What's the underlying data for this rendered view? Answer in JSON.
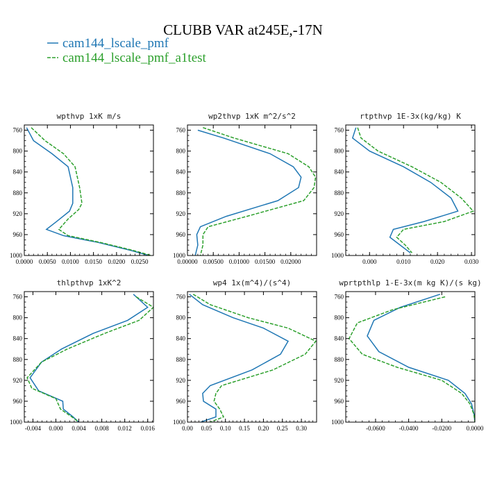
{
  "figure": {
    "title": "CLUBB VAR at245E,-17N",
    "legend": [
      {
        "label": "cam144_lscale_pmf",
        "color": "#1f77b4",
        "dash": false
      },
      {
        "label": "cam144_lscale_pmf_a1test",
        "color": "#2ca02c",
        "dash": true
      }
    ]
  },
  "chart_data": [
    {
      "type": "line",
      "title": "wpthvp  1xK m/s",
      "y_ticks": [
        760,
        800,
        840,
        880,
        920,
        960,
        1000
      ],
      "ylim": [
        1000,
        750
      ],
      "xlim": [
        0.0,
        0.028
      ],
      "x_ticks": [
        0.0,
        0.005,
        0.01,
        0.015,
        0.02,
        0.025
      ],
      "x_tick_labels": [
        "0.0000",
        "0.0050",
        "0.0100",
        "0.0150",
        "0.0200",
        "0.0250"
      ],
      "series": [
        {
          "color": "#1f77b4",
          "dash": false,
          "y": [
            755,
            780,
            805,
            830,
            870,
            900,
            915,
            935,
            950,
            962,
            975,
            990,
            1000
          ],
          "x": [
            0.0005,
            0.002,
            0.006,
            0.0095,
            0.0105,
            0.0105,
            0.0098,
            0.007,
            0.0048,
            0.0085,
            0.016,
            0.023,
            0.027
          ]
        },
        {
          "color": "#2ca02c",
          "dash": true,
          "y": [
            755,
            780,
            805,
            830,
            870,
            900,
            912,
            930,
            950,
            962,
            975,
            990,
            1000
          ],
          "x": [
            0.0015,
            0.0045,
            0.0085,
            0.011,
            0.012,
            0.0125,
            0.0118,
            0.0095,
            0.0075,
            0.0095,
            0.0165,
            0.0235,
            0.0275
          ]
        }
      ]
    },
    {
      "type": "line",
      "title": "wp2thvp  1xK m^2/s^2",
      "y_ticks": [
        760,
        800,
        840,
        880,
        920,
        960,
        1000
      ],
      "ylim": [
        1000,
        750
      ],
      "xlim": [
        0.0,
        0.025
      ],
      "x_ticks": [
        0.0,
        0.005,
        0.01,
        0.015,
        0.02
      ],
      "x_tick_labels": [
        "0.00000",
        "0.00500",
        "0.01000",
        "0.01500",
        "0.02000"
      ],
      "series": [
        {
          "color": "#1f77b4",
          "dash": false,
          "y": [
            760,
            775,
            805,
            830,
            850,
            870,
            895,
            925,
            945,
            960,
            980,
            1000
          ],
          "x": [
            0.002,
            0.007,
            0.016,
            0.0205,
            0.022,
            0.0215,
            0.0175,
            0.0075,
            0.0025,
            0.0018,
            0.002,
            0.0015
          ]
        },
        {
          "color": "#2ca02c",
          "dash": true,
          "y": [
            755,
            775,
            805,
            830,
            850,
            870,
            895,
            925,
            945,
            960,
            980,
            1000
          ],
          "x": [
            0.003,
            0.009,
            0.0195,
            0.0235,
            0.0248,
            0.0245,
            0.0225,
            0.0115,
            0.004,
            0.003,
            0.003,
            0.0025
          ]
        }
      ]
    },
    {
      "type": "line",
      "title": "rtpthvp  1E-3x(kg/kg) K",
      "y_ticks": [
        760,
        800,
        840,
        880,
        920,
        960,
        1000
      ],
      "ylim": [
        1000,
        750
      ],
      "xlim": [
        -0.007,
        0.031
      ],
      "x_ticks": [
        0.0,
        0.01,
        0.02,
        0.03
      ],
      "x_tick_labels": [
        "0.000",
        "0.010",
        "0.020",
        "0.030"
      ],
      "series": [
        {
          "color": "#1f77b4",
          "dash": false,
          "y": [
            755,
            775,
            800,
            830,
            860,
            890,
            915,
            935,
            950,
            965,
            980,
            995
          ],
          "x": [
            -0.004,
            -0.005,
            0.0,
            0.01,
            0.018,
            0.024,
            0.026,
            0.016,
            0.007,
            0.006,
            0.009,
            0.012
          ]
        },
        {
          "color": "#2ca02c",
          "dash": true,
          "y": [
            755,
            775,
            800,
            830,
            860,
            890,
            915,
            935,
            950,
            965,
            980,
            995
          ],
          "x": [
            -0.0035,
            -0.0025,
            0.0025,
            0.0125,
            0.021,
            0.027,
            0.0305,
            0.022,
            0.01,
            0.008,
            0.0105,
            0.0125
          ]
        }
      ]
    },
    {
      "type": "line",
      "title": "thlpthvp  1xK^2",
      "y_ticks": [
        760,
        800,
        840,
        880,
        920,
        960,
        1000
      ],
      "ylim": [
        1000,
        750
      ],
      "xlim": [
        -0.0055,
        0.017
      ],
      "x_ticks": [
        -0.004,
        0.0,
        0.004,
        0.008,
        0.012,
        0.016
      ],
      "x_tick_labels": [
        "-0.004",
        "0.000",
        "0.004",
        "0.008",
        "0.012",
        "0.016"
      ],
      "series": [
        {
          "color": "#1f77b4",
          "dash": false,
          "y": [
            755,
            780,
            805,
            830,
            860,
            885,
            915,
            940,
            960,
            975,
            990,
            1000
          ],
          "x": [
            0.0135,
            0.016,
            0.0125,
            0.0065,
            0.001,
            -0.0025,
            -0.0045,
            -0.003,
            0.0012,
            0.0013,
            0.003,
            0.004
          ]
        },
        {
          "color": "#2ca02c",
          "dash": true,
          "y": [
            760,
            780,
            805,
            830,
            860,
            885,
            915,
            935,
            955,
            975,
            990,
            1000
          ],
          "x": [
            0.014,
            0.017,
            0.0145,
            0.0085,
            0.002,
            -0.0025,
            -0.005,
            -0.0042,
            0.0,
            0.0008,
            0.0028,
            0.004
          ]
        }
      ]
    },
    {
      "type": "line",
      "title": "wp4  1x(m^4)/(s^4)",
      "y_ticks": [
        760,
        800,
        840,
        880,
        920,
        960,
        1000
      ],
      "ylim": [
        1000,
        750
      ],
      "xlim": [
        0.0,
        0.34
      ],
      "x_ticks": [
        0.0,
        0.05,
        0.1,
        0.15,
        0.2,
        0.25,
        0.3
      ],
      "x_tick_labels": [
        "0.00",
        "0.05",
        "0.10",
        "0.15",
        "0.20",
        "0.25",
        "0.30"
      ],
      "series": [
        {
          "color": "#1f77b4",
          "dash": false,
          "y": [
            755,
            775,
            800,
            820,
            845,
            870,
            900,
            930,
            945,
            960,
            975,
            990,
            1000
          ],
          "x": [
            0.005,
            0.04,
            0.12,
            0.2,
            0.265,
            0.245,
            0.17,
            0.06,
            0.04,
            0.042,
            0.075,
            0.075,
            0.035
          ]
        },
        {
          "color": "#2ca02c",
          "dash": true,
          "y": [
            755,
            775,
            800,
            820,
            845,
            870,
            900,
            930,
            945,
            960,
            975,
            990,
            1000
          ],
          "x": [
            0.015,
            0.06,
            0.16,
            0.265,
            0.338,
            0.31,
            0.225,
            0.09,
            0.075,
            0.07,
            0.085,
            0.095,
            0.06
          ]
        }
      ]
    },
    {
      "type": "line",
      "title": "wprtpthlp  1-E-3x(m kg K)/(s kg)",
      "y_ticks": [
        760,
        800,
        840,
        880,
        920,
        960,
        1000
      ],
      "ylim": [
        1000,
        750
      ],
      "xlim": [
        -0.078,
        0.0
      ],
      "x_ticks": [
        -0.06,
        -0.04,
        -0.02,
        0.0
      ],
      "x_tick_labels": [
        "-0.0600",
        "-0.0400",
        "-0.0200",
        "0.0000"
      ],
      "series": [
        {
          "color": "#1f77b4",
          "dash": false,
          "y": [
            755,
            780,
            805,
            835,
            865,
            895,
            920,
            945,
            965,
            985,
            1000
          ],
          "x": [
            -0.021,
            -0.045,
            -0.061,
            -0.065,
            -0.058,
            -0.04,
            -0.016,
            -0.006,
            -0.002,
            -0.0005,
            0.0
          ]
        },
        {
          "color": "#2ca02c",
          "dash": true,
          "y": [
            760,
            785,
            810,
            840,
            870,
            895,
            920,
            945,
            965,
            985,
            1000
          ],
          "x": [
            -0.018,
            -0.05,
            -0.071,
            -0.076,
            -0.068,
            -0.047,
            -0.02,
            -0.008,
            -0.003,
            -0.0006,
            0.0
          ]
        }
      ]
    }
  ]
}
